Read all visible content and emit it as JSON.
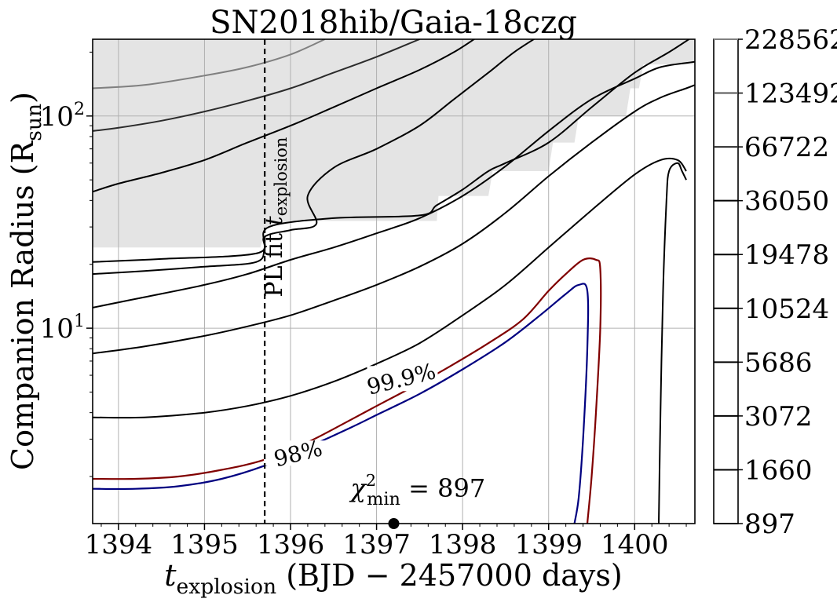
{
  "chart_data": {
    "type": "contour",
    "title": "SN2018hib/Gaia-18czg",
    "xlabel": {
      "main": "t",
      "sub": "explosion",
      "rest": " (BJD − 2457000 days)"
    },
    "ylabel": {
      "main": "Companion Radius (R",
      "sub": "sun",
      "rest": ")"
    },
    "x_scale": "linear",
    "y_scale": "log",
    "xlim": [
      1393.7,
      1400.7
    ],
    "ylim": [
      1.2,
      230
    ],
    "x_ticks": [
      1394,
      1395,
      1396,
      1397,
      1398,
      1399,
      1400
    ],
    "x_tick_labels": [
      "1394",
      "1395",
      "1396",
      "1397",
      "1398",
      "1399",
      "1400"
    ],
    "y_ticks": [
      10,
      100
    ],
    "y_tick_labels": [
      {
        "base": "10",
        "exp": "1"
      },
      {
        "base": "10",
        "exp": "2"
      }
    ],
    "grid": true,
    "colorbar": {
      "levels": [
        897,
        1660,
        3072,
        5686,
        10524,
        19478,
        36050,
        66722,
        123492,
        228562
      ],
      "labels": [
        "897",
        "1660",
        "3072",
        "5686",
        "10524",
        "19478",
        "36050",
        "66722",
        "123492",
        "228562"
      ],
      "line_colors": [
        "#000000",
        "#000000",
        "#000000",
        "#000000",
        "#000000",
        "#000000",
        "#000000",
        "#2b2b2b",
        "#555555",
        "#808080"
      ]
    },
    "shaded_region": {
      "color": "#e4e4e4",
      "boundary": [
        [
          1393.7,
          24
        ],
        [
          1395.65,
          24
        ],
        [
          1395.72,
          30
        ],
        [
          1396.0,
          32
        ],
        [
          1397.7,
          32
        ],
        [
          1397.72,
          42
        ],
        [
          1398.3,
          42
        ],
        [
          1398.35,
          55
        ],
        [
          1399.0,
          55
        ],
        [
          1399.05,
          75
        ],
        [
          1399.3,
          75
        ],
        [
          1399.35,
          100
        ],
        [
          1399.9,
          100
        ],
        [
          1399.95,
          135
        ],
        [
          1400.05,
          135
        ],
        [
          1400.1,
          175
        ],
        [
          1400.7,
          175
        ]
      ]
    },
    "contours": [
      {
        "level": 1660,
        "color": "#000000",
        "points": [
          [
            1400.28,
            1.2
          ],
          [
            1400.3,
            4
          ],
          [
            1400.33,
            15
          ],
          [
            1400.37,
            40
          ],
          [
            1400.4,
            55
          ],
          [
            1400.5,
            60
          ],
          [
            1400.55,
            55
          ],
          [
            1400.6,
            50
          ]
        ]
      },
      {
        "level": 3072,
        "color": "#000000",
        "points": [
          [
            1393.7,
            3.8
          ],
          [
            1394.3,
            3.8
          ],
          [
            1395.0,
            4.0
          ],
          [
            1395.5,
            4.3
          ],
          [
            1396.0,
            4.8
          ],
          [
            1396.5,
            5.6
          ],
          [
            1397.0,
            6.8
          ],
          [
            1397.5,
            8.5
          ],
          [
            1398.0,
            11.5
          ],
          [
            1398.5,
            16
          ],
          [
            1399.0,
            24
          ],
          [
            1399.5,
            36
          ],
          [
            1400.0,
            53
          ],
          [
            1400.3,
            62
          ],
          [
            1400.5,
            62
          ],
          [
            1400.6,
            55
          ]
        ]
      },
      {
        "level": 5686,
        "color": "#000000",
        "points": [
          [
            1393.7,
            7.6
          ],
          [
            1394.3,
            8.2
          ],
          [
            1395.0,
            9.2
          ],
          [
            1395.5,
            10.2
          ],
          [
            1396.0,
            11.5
          ],
          [
            1396.5,
            13.5
          ],
          [
            1397.0,
            16
          ],
          [
            1397.5,
            19.5
          ],
          [
            1398.0,
            25
          ],
          [
            1398.5,
            35
          ],
          [
            1399.0,
            52
          ],
          [
            1399.5,
            75
          ],
          [
            1400.0,
            105
          ],
          [
            1400.3,
            122
          ],
          [
            1400.6,
            135
          ],
          [
            1400.7,
            140
          ]
        ]
      },
      {
        "level": 10524,
        "color": "#000000",
        "points": [
          [
            1393.7,
            12.5
          ],
          [
            1394.3,
            14
          ],
          [
            1395.0,
            16
          ],
          [
            1395.5,
            18
          ],
          [
            1396.0,
            21
          ],
          [
            1396.5,
            24
          ],
          [
            1397.0,
            28
          ],
          [
            1397.5,
            33
          ],
          [
            1398.0,
            42
          ],
          [
            1398.5,
            58
          ],
          [
            1399.0,
            85
          ],
          [
            1399.5,
            120
          ],
          [
            1400.0,
            150
          ],
          [
            1400.3,
            170
          ],
          [
            1400.7,
            180
          ]
        ]
      },
      {
        "level": 19478,
        "color": "#000000",
        "points": [
          [
            1393.7,
            18
          ],
          [
            1394.3,
            18.6
          ],
          [
            1395.0,
            19.5
          ],
          [
            1395.6,
            20.5
          ],
          [
            1395.7,
            24
          ],
          [
            1395.75,
            30
          ],
          [
            1396.5,
            33
          ],
          [
            1397.5,
            34
          ],
          [
            1397.7,
            38
          ],
          [
            1398.0,
            45
          ],
          [
            1398.3,
            55
          ],
          [
            1398.5,
            60
          ],
          [
            1399.0,
            75
          ],
          [
            1399.5,
            110
          ],
          [
            1400.0,
            160
          ],
          [
            1400.4,
            200
          ],
          [
            1400.7,
            240
          ]
        ]
      },
      {
        "level": 36050,
        "color": "#000000",
        "points": [
          [
            1393.7,
            20.5
          ],
          [
            1394.5,
            21.2
          ],
          [
            1395.6,
            22.5
          ],
          [
            1395.7,
            27
          ],
          [
            1396.0,
            29
          ],
          [
            1396.3,
            31
          ],
          [
            1396.2,
            42
          ],
          [
            1396.5,
            57
          ],
          [
            1397.0,
            70
          ],
          [
            1397.5,
            90
          ],
          [
            1397.9,
            120
          ],
          [
            1398.3,
            160
          ],
          [
            1398.6,
            200
          ],
          [
            1398.9,
            240
          ]
        ]
      },
      {
        "level": 36050,
        "color": "#000000",
        "points": [
          [
            1393.7,
            44
          ],
          [
            1394.0,
            48
          ],
          [
            1394.5,
            54
          ],
          [
            1395.0,
            62
          ],
          [
            1395.5,
            75
          ],
          [
            1396.0,
            90
          ],
          [
            1396.5,
            110
          ],
          [
            1397.0,
            135
          ],
          [
            1397.5,
            165
          ],
          [
            1397.9,
            200
          ],
          [
            1398.2,
            240
          ]
        ]
      },
      {
        "level": 66722,
        "color": "#2b2b2b",
        "points": [
          [
            1393.7,
            85
          ],
          [
            1394.0,
            88
          ],
          [
            1394.5,
            95
          ],
          [
            1395.0,
            105
          ],
          [
            1395.5,
            118
          ],
          [
            1396.0,
            135
          ],
          [
            1396.5,
            160
          ],
          [
            1397.0,
            190
          ],
          [
            1397.5,
            230
          ]
        ]
      },
      {
        "level": 123492,
        "color": "#808080",
        "points": [
          [
            1393.7,
            135
          ],
          [
            1394.3,
            140
          ],
          [
            1395.0,
            155
          ],
          [
            1395.5,
            170
          ],
          [
            1396.0,
            195
          ],
          [
            1396.4,
            230
          ]
        ]
      }
    ],
    "confidence_contours": [
      {
        "label": "99.9%",
        "color": "#800000",
        "points": [
          [
            1393.7,
            1.95
          ],
          [
            1394.2,
            1.95
          ],
          [
            1394.7,
            2.0
          ],
          [
            1395.2,
            2.15
          ],
          [
            1395.7,
            2.4
          ],
          [
            1396.2,
            2.9
          ],
          [
            1396.7,
            3.7
          ],
          [
            1397.0,
            4.3
          ],
          [
            1397.5,
            5.5
          ],
          [
            1397.85,
            6.6
          ],
          [
            1398.3,
            8.5
          ],
          [
            1398.7,
            11
          ],
          [
            1399.0,
            15
          ],
          [
            1399.2,
            18
          ],
          [
            1399.4,
            21
          ],
          [
            1399.55,
            21
          ],
          [
            1399.6,
            19
          ],
          [
            1399.6,
            10
          ],
          [
            1399.55,
            4
          ],
          [
            1399.5,
            2
          ],
          [
            1399.45,
            1.2
          ]
        ],
        "label_at": [
          1397.3,
          5.5
        ]
      },
      {
        "label": "98%",
        "color": "#000080",
        "points": [
          [
            1393.7,
            1.75
          ],
          [
            1394.2,
            1.75
          ],
          [
            1394.7,
            1.8
          ],
          [
            1395.2,
            1.95
          ],
          [
            1395.7,
            2.25
          ],
          [
            1396.2,
            2.75
          ],
          [
            1396.7,
            3.4
          ],
          [
            1397.0,
            3.9
          ],
          [
            1397.5,
            4.9
          ],
          [
            1398.0,
            6.4
          ],
          [
            1398.5,
            8.6
          ],
          [
            1398.9,
            11.5
          ],
          [
            1399.2,
            14.5
          ],
          [
            1399.35,
            16
          ],
          [
            1399.45,
            15
          ],
          [
            1399.45,
            8
          ],
          [
            1399.4,
            3
          ],
          [
            1399.35,
            1.6
          ],
          [
            1399.3,
            1.2
          ]
        ],
        "label_at": [
          1396.1,
          2.45
        ]
      }
    ],
    "vline": {
      "x": 1395.7,
      "label": {
        "main": "PL fit ",
        "var": "t",
        "sub": "explosion"
      }
    },
    "minimum": {
      "x": 1397.2,
      "y": 1.2,
      "label": {
        "chi": "χ",
        "sup": "2",
        "sub": "min",
        "rest": " = 897"
      }
    }
  }
}
